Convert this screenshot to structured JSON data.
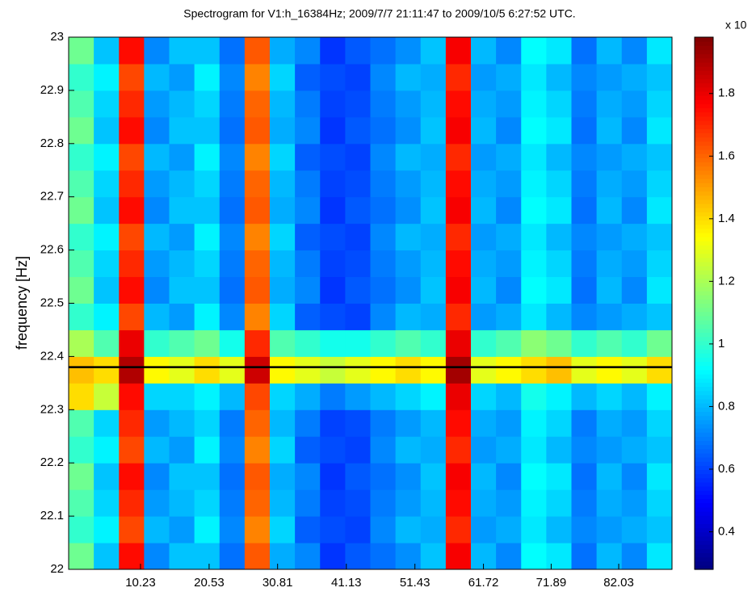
{
  "chart_data": {
    "type": "heatmap",
    "title": "Spectrogram for V1:h_16384Hz;  2009/7/7 21:11:47 to 2009/10/5 6:27:52 UTC.",
    "ylabel": "frequency [Hz]",
    "xlim": [
      -0.56,
      90.03
    ],
    "xticks": [
      10.23,
      20.53,
      30.81,
      41.13,
      51.43,
      61.72,
      71.89,
      82.03
    ],
    "ylim": [
      22,
      23
    ],
    "yticks": [
      22,
      22.1,
      22.2,
      22.3,
      22.4,
      22.5,
      22.6,
      22.7,
      22.8,
      22.9,
      23
    ],
    "hline": {
      "value": 22.38,
      "color": "#000000"
    },
    "colormap": "jet",
    "colorbar": {
      "label": "x 10",
      "clim": [
        0.28,
        1.98
      ],
      "ticks": [
        0.4,
        0.6,
        0.8,
        1,
        1.2,
        1.4,
        1.6,
        1.8
      ]
    },
    "z": [
      [
        1.1,
        0.82,
        1.75,
        0.72,
        0.82,
        0.82,
        0.68,
        1.62,
        0.78,
        0.72,
        0.58,
        0.64,
        0.68,
        0.73,
        0.82,
        1.78,
        0.8,
        0.72,
        0.92,
        0.88,
        0.68,
        0.8,
        0.72,
        0.88
      ],
      [
        1.0,
        0.9,
        1.65,
        0.8,
        0.75,
        0.9,
        0.72,
        1.55,
        0.85,
        0.65,
        0.62,
        0.6,
        0.72,
        0.8,
        0.78,
        1.7,
        0.75,
        0.78,
        0.88,
        0.8,
        0.72,
        0.75,
        0.78,
        0.82
      ],
      [
        1.05,
        0.85,
        1.7,
        0.75,
        0.8,
        0.85,
        0.7,
        1.6,
        0.8,
        0.7,
        0.6,
        0.62,
        0.7,
        0.75,
        0.8,
        1.75,
        0.78,
        0.75,
        0.9,
        0.85,
        0.7,
        0.78,
        0.75,
        0.85
      ],
      [
        1.1,
        0.82,
        1.75,
        0.72,
        0.82,
        0.82,
        0.68,
        1.62,
        0.78,
        0.72,
        0.58,
        0.64,
        0.68,
        0.73,
        0.82,
        1.78,
        0.8,
        0.72,
        0.92,
        0.88,
        0.68,
        0.8,
        0.72,
        0.88
      ],
      [
        1.0,
        0.9,
        1.65,
        0.8,
        0.75,
        0.9,
        0.72,
        1.55,
        0.85,
        0.65,
        0.62,
        0.6,
        0.72,
        0.8,
        0.78,
        1.7,
        0.75,
        0.78,
        0.88,
        0.8,
        0.72,
        0.75,
        0.78,
        0.82
      ],
      [
        1.05,
        0.85,
        1.7,
        0.75,
        0.8,
        0.85,
        0.7,
        1.6,
        0.8,
        0.7,
        0.6,
        0.62,
        0.7,
        0.75,
        0.8,
        1.75,
        0.78,
        0.75,
        0.9,
        0.85,
        0.7,
        0.78,
        0.75,
        0.85
      ],
      [
        1.4,
        1.25,
        1.75,
        0.85,
        0.85,
        0.9,
        0.8,
        1.65,
        0.85,
        0.78,
        0.7,
        0.75,
        0.8,
        0.85,
        0.9,
        1.8,
        0.85,
        0.8,
        0.95,
        0.9,
        0.8,
        0.85,
        0.8,
        0.9
      ],
      [
        1.45,
        1.4,
        1.9,
        1.35,
        1.3,
        1.4,
        1.3,
        1.85,
        1.35,
        1.3,
        1.25,
        1.3,
        1.35,
        1.4,
        1.35,
        1.92,
        1.3,
        1.35,
        1.4,
        1.45,
        1.3,
        1.35,
        1.3,
        1.4
      ],
      [
        1.2,
        1.05,
        1.8,
        1.0,
        1.05,
        1.1,
        0.95,
        1.7,
        1.05,
        1.0,
        0.95,
        0.95,
        1.0,
        1.05,
        1.0,
        1.8,
        1.0,
        1.05,
        1.15,
        1.1,
        1.0,
        1.05,
        1.0,
        1.1
      ],
      [
        1.0,
        0.9,
        1.65,
        0.8,
        0.75,
        0.9,
        0.72,
        1.55,
        0.85,
        0.65,
        0.62,
        0.6,
        0.72,
        0.8,
        0.78,
        1.7,
        0.75,
        0.78,
        0.88,
        0.8,
        0.72,
        0.75,
        0.78,
        0.82
      ],
      [
        1.1,
        0.82,
        1.75,
        0.72,
        0.82,
        0.82,
        0.68,
        1.62,
        0.78,
        0.72,
        0.58,
        0.64,
        0.68,
        0.73,
        0.82,
        1.78,
        0.8,
        0.72,
        0.92,
        0.88,
        0.68,
        0.8,
        0.72,
        0.88
      ],
      [
        1.05,
        0.85,
        1.7,
        0.75,
        0.8,
        0.85,
        0.7,
        1.6,
        0.8,
        0.7,
        0.6,
        0.62,
        0.7,
        0.75,
        0.8,
        1.75,
        0.78,
        0.75,
        0.9,
        0.85,
        0.7,
        0.78,
        0.75,
        0.85
      ],
      [
        1.0,
        0.9,
        1.65,
        0.8,
        0.75,
        0.9,
        0.72,
        1.55,
        0.85,
        0.65,
        0.62,
        0.6,
        0.72,
        0.8,
        0.78,
        1.7,
        0.75,
        0.78,
        0.88,
        0.8,
        0.72,
        0.75,
        0.78,
        0.82
      ],
      [
        1.1,
        0.82,
        1.75,
        0.72,
        0.82,
        0.82,
        0.68,
        1.62,
        0.78,
        0.72,
        0.58,
        0.64,
        0.68,
        0.73,
        0.82,
        1.78,
        0.8,
        0.72,
        0.92,
        0.88,
        0.68,
        0.8,
        0.72,
        0.88
      ],
      [
        1.05,
        0.85,
        1.7,
        0.75,
        0.8,
        0.85,
        0.7,
        1.6,
        0.8,
        0.7,
        0.6,
        0.62,
        0.7,
        0.75,
        0.8,
        1.75,
        0.78,
        0.75,
        0.9,
        0.85,
        0.7,
        0.78,
        0.75,
        0.85
      ],
      [
        1.0,
        0.9,
        1.65,
        0.8,
        0.75,
        0.9,
        0.72,
        1.55,
        0.85,
        0.65,
        0.62,
        0.6,
        0.72,
        0.8,
        0.78,
        1.7,
        0.75,
        0.78,
        0.88,
        0.8,
        0.72,
        0.75,
        0.78,
        0.82
      ],
      [
        1.1,
        0.82,
        1.75,
        0.72,
        0.82,
        0.82,
        0.68,
        1.62,
        0.78,
        0.72,
        0.58,
        0.64,
        0.68,
        0.73,
        0.82,
        1.78,
        0.8,
        0.72,
        0.92,
        0.88,
        0.68,
        0.8,
        0.72,
        0.88
      ],
      [
        1.05,
        0.85,
        1.7,
        0.75,
        0.8,
        0.85,
        0.7,
        1.6,
        0.8,
        0.7,
        0.6,
        0.62,
        0.7,
        0.75,
        0.8,
        1.75,
        0.78,
        0.75,
        0.9,
        0.85,
        0.7,
        0.78,
        0.75,
        0.85
      ],
      [
        1.0,
        0.9,
        1.65,
        0.8,
        0.75,
        0.9,
        0.72,
        1.55,
        0.85,
        0.65,
        0.62,
        0.6,
        0.72,
        0.8,
        0.78,
        1.7,
        0.75,
        0.78,
        0.88,
        0.8,
        0.72,
        0.75,
        0.78,
        0.82
      ],
      [
        1.1,
        0.82,
        1.75,
        0.72,
        0.82,
        0.82,
        0.68,
        1.62,
        0.78,
        0.72,
        0.58,
        0.64,
        0.68,
        0.73,
        0.82,
        1.78,
        0.8,
        0.72,
        0.92,
        0.88,
        0.68,
        0.8,
        0.72,
        0.88
      ]
    ]
  }
}
